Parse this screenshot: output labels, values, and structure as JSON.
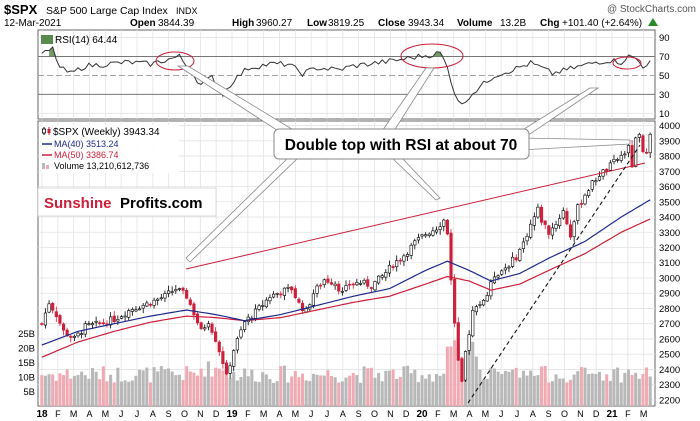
{
  "header": {
    "ticker": "$SPX",
    "name": "S&P 500 Large Cap Index",
    "exchange": "INDX",
    "date": "12-Mar-2021",
    "open_label": "Open",
    "open": "3844.39",
    "high_label": "High",
    "high": "3960.27",
    "low_label": "Low",
    "low": "3819.25",
    "close_label": "Close",
    "close": "3943.34",
    "volume_label": "Volume",
    "volume": "13.2B",
    "chg_label": "Chg",
    "chg": "+101.40 (+2.64%)",
    "watermark": "@ StockCharts.com"
  },
  "colors": {
    "up": "#000000",
    "down": "#cc1f3a",
    "ma40": "#1f2a8c",
    "ma50": "#cc1f3a",
    "rsi": "#333333",
    "rsi_fill": "#5a8a50",
    "vol_up": "#b8b8b8",
    "vol_down": "#f0aab4",
    "trend": "#cc1f3a",
    "callout_border": "#777777",
    "brand_red": "#cc1f3a"
  },
  "legend": {
    "price": "$SPX (Weekly) 3943.34",
    "ma40": "MA(40) 3513.24",
    "ma50": "MA(50) 3386.74",
    "volume": "Volume 13,210,612,736"
  },
  "rsi_panel": {
    "label": "RSI(14) 64.44"
  },
  "annotation": {
    "text": "Double top with RSI at about 70"
  },
  "brand": {
    "part1": "Sunshine",
    "part2": "Profits.com"
  },
  "chart_data": {
    "type": "candlestick",
    "title": "$SPX S&P 500 Large Cap Index",
    "x_labels": [
      "18",
      "F",
      "M",
      "A",
      "M",
      "J",
      "J",
      "A",
      "S",
      "O",
      "N",
      "D",
      "19",
      "F",
      "M",
      "A",
      "M",
      "J",
      "J",
      "A",
      "S",
      "O",
      "N",
      "D",
      "20",
      "F",
      "M",
      "A",
      "M",
      "J",
      "J",
      "A",
      "S",
      "O",
      "N",
      "D",
      "21",
      "F",
      "M"
    ],
    "x_bold": [
      "18",
      "19",
      "20",
      "21"
    ],
    "price_ticks": [
      2200,
      2300,
      2400,
      2500,
      2600,
      2700,
      2800,
      2900,
      3000,
      3100,
      3200,
      3300,
      3400,
      3500,
      3600,
      3700,
      3800,
      3900,
      4000
    ],
    "price_range": [
      2160,
      4030
    ],
    "rsi_ticks": [
      10,
      30,
      50,
      70,
      90
    ],
    "rsi_range": [
      4,
      98
    ],
    "volume_ticks": [
      "5B",
      "10B",
      "15B",
      "20B",
      "25B"
    ],
    "volume_tick_values": [
      5,
      10,
      15,
      20,
      25
    ],
    "volume_range": [
      0,
      28
    ],
    "grid": true,
    "legend_position": "top-left",
    "ohlc_anchors": [
      {
        "w": 0,
        "v": 2700
      },
      {
        "w": 2,
        "v": 2840
      },
      {
        "w": 4,
        "v": 2760
      },
      {
        "w": 6,
        "v": 2650
      },
      {
        "w": 9,
        "v": 2600
      },
      {
        "w": 12,
        "v": 2680
      },
      {
        "w": 16,
        "v": 2700
      },
      {
        "w": 20,
        "v": 2730
      },
      {
        "w": 25,
        "v": 2800
      },
      {
        "w": 29,
        "v": 2830
      },
      {
        "w": 34,
        "v": 2880
      },
      {
        "w": 37,
        "v": 2930
      },
      {
        "w": 40,
        "v": 2880
      },
      {
        "w": 42,
        "v": 2770
      },
      {
        "w": 44,
        "v": 2650
      },
      {
        "w": 46,
        "v": 2720
      },
      {
        "w": 48,
        "v": 2600
      },
      {
        "w": 50,
        "v": 2450
      },
      {
        "w": 51,
        "v": 2350
      },
      {
        "w": 53,
        "v": 2530
      },
      {
        "w": 56,
        "v": 2710
      },
      {
        "w": 60,
        "v": 2800
      },
      {
        "w": 63,
        "v": 2880
      },
      {
        "w": 66,
        "v": 2910
      },
      {
        "w": 69,
        "v": 2930
      },
      {
        "w": 71,
        "v": 2830
      },
      {
        "w": 73,
        "v": 2780
      },
      {
        "w": 75,
        "v": 2900
      },
      {
        "w": 78,
        "v": 2990
      },
      {
        "w": 81,
        "v": 2970
      },
      {
        "w": 83,
        "v": 2900
      },
      {
        "w": 85,
        "v": 2960
      },
      {
        "w": 88,
        "v": 2970
      },
      {
        "w": 91,
        "v": 2950
      },
      {
        "w": 94,
        "v": 3010
      },
      {
        "w": 97,
        "v": 3090
      },
      {
        "w": 100,
        "v": 3150
      },
      {
        "w": 103,
        "v": 3230
      },
      {
        "w": 106,
        "v": 3290
      },
      {
        "w": 109,
        "v": 3330
      },
      {
        "w": 111,
        "v": 3380
      },
      {
        "w": 112,
        "v": 3300
      },
      {
        "w": 113,
        "v": 3000
      },
      {
        "w": 114,
        "v": 2700
      },
      {
        "w": 115,
        "v": 2450
      },
      {
        "w": 116,
        "v": 2300
      },
      {
        "w": 117,
        "v": 2510
      },
      {
        "w": 119,
        "v": 2780
      },
      {
        "w": 121,
        "v": 2830
      },
      {
        "w": 123,
        "v": 2890
      },
      {
        "w": 125,
        "v": 3020
      },
      {
        "w": 127,
        "v": 3050
      },
      {
        "w": 129,
        "v": 3090
      },
      {
        "w": 131,
        "v": 3140
      },
      {
        "w": 133,
        "v": 3230
      },
      {
        "w": 135,
        "v": 3350
      },
      {
        "w": 137,
        "v": 3450
      },
      {
        "w": 138,
        "v": 3380
      },
      {
        "w": 140,
        "v": 3300
      },
      {
        "w": 142,
        "v": 3360
      },
      {
        "w": 144,
        "v": 3440
      },
      {
        "w": 146,
        "v": 3280
      },
      {
        "w": 148,
        "v": 3460
      },
      {
        "w": 150,
        "v": 3550
      },
      {
        "w": 152,
        "v": 3620
      },
      {
        "w": 154,
        "v": 3680
      },
      {
        "w": 156,
        "v": 3710
      },
      {
        "w": 158,
        "v": 3760
      },
      {
        "w": 160,
        "v": 3800
      },
      {
        "w": 162,
        "v": 3850
      },
      {
        "w": 163,
        "v": 3740
      },
      {
        "w": 164,
        "v": 3900
      },
      {
        "w": 165,
        "v": 3930
      },
      {
        "w": 166,
        "v": 3810
      },
      {
        "w": 167,
        "v": 3840
      },
      {
        "w": 168,
        "v": 3943
      }
    ],
    "ma40_anchors": [
      {
        "w": 0,
        "v": 2560
      },
      {
        "w": 10,
        "v": 2650
      },
      {
        "w": 20,
        "v": 2700
      },
      {
        "w": 30,
        "v": 2750
      },
      {
        "w": 40,
        "v": 2790
      },
      {
        "w": 48,
        "v": 2760
      },
      {
        "w": 56,
        "v": 2720
      },
      {
        "w": 66,
        "v": 2760
      },
      {
        "w": 76,
        "v": 2820
      },
      {
        "w": 86,
        "v": 2880
      },
      {
        "w": 96,
        "v": 2930
      },
      {
        "w": 106,
        "v": 3050
      },
      {
        "w": 112,
        "v": 3110
      },
      {
        "w": 118,
        "v": 3050
      },
      {
        "w": 124,
        "v": 2980
      },
      {
        "w": 132,
        "v": 3030
      },
      {
        "w": 140,
        "v": 3130
      },
      {
        "w": 150,
        "v": 3240
      },
      {
        "w": 160,
        "v": 3400
      },
      {
        "w": 168,
        "v": 3513
      }
    ],
    "ma50_anchors": [
      {
        "w": 0,
        "v": 2480
      },
      {
        "w": 10,
        "v": 2580
      },
      {
        "w": 20,
        "v": 2650
      },
      {
        "w": 30,
        "v": 2710
      },
      {
        "w": 40,
        "v": 2750
      },
      {
        "w": 48,
        "v": 2740
      },
      {
        "w": 56,
        "v": 2720
      },
      {
        "w": 66,
        "v": 2740
      },
      {
        "w": 76,
        "v": 2790
      },
      {
        "w": 86,
        "v": 2840
      },
      {
        "w": 96,
        "v": 2880
      },
      {
        "w": 106,
        "v": 2960
      },
      {
        "w": 112,
        "v": 3010
      },
      {
        "w": 118,
        "v": 2980
      },
      {
        "w": 124,
        "v": 2920
      },
      {
        "w": 132,
        "v": 2960
      },
      {
        "w": 140,
        "v": 3050
      },
      {
        "w": 150,
        "v": 3160
      },
      {
        "w": 160,
        "v": 3300
      },
      {
        "w": 168,
        "v": 3387
      }
    ],
    "rsi_anchors": [
      {
        "w": 0,
        "v": 72
      },
      {
        "w": 3,
        "v": 78
      },
      {
        "w": 5,
        "v": 58
      },
      {
        "w": 8,
        "v": 52
      },
      {
        "w": 12,
        "v": 60
      },
      {
        "w": 18,
        "v": 62
      },
      {
        "w": 24,
        "v": 64
      },
      {
        "w": 30,
        "v": 62
      },
      {
        "w": 36,
        "v": 68
      },
      {
        "w": 38,
        "v": 70
      },
      {
        "w": 41,
        "v": 55
      },
      {
        "w": 44,
        "v": 40
      },
      {
        "w": 47,
        "v": 48
      },
      {
        "w": 50,
        "v": 30
      },
      {
        "w": 53,
        "v": 45
      },
      {
        "w": 57,
        "v": 58
      },
      {
        "w": 63,
        "v": 62
      },
      {
        "w": 68,
        "v": 62
      },
      {
        "w": 72,
        "v": 52
      },
      {
        "w": 76,
        "v": 58
      },
      {
        "w": 82,
        "v": 56
      },
      {
        "w": 86,
        "v": 60
      },
      {
        "w": 92,
        "v": 63
      },
      {
        "w": 98,
        "v": 66
      },
      {
        "w": 104,
        "v": 70
      },
      {
        "w": 108,
        "v": 72
      },
      {
        "w": 110,
        "v": 74
      },
      {
        "w": 112,
        "v": 58
      },
      {
        "w": 114,
        "v": 32
      },
      {
        "w": 116,
        "v": 18
      },
      {
        "w": 118,
        "v": 28
      },
      {
        "w": 121,
        "v": 38
      },
      {
        "w": 125,
        "v": 50
      },
      {
        "w": 130,
        "v": 56
      },
      {
        "w": 135,
        "v": 63
      },
      {
        "w": 138,
        "v": 58
      },
      {
        "w": 141,
        "v": 52
      },
      {
        "w": 145,
        "v": 56
      },
      {
        "w": 149,
        "v": 60
      },
      {
        "w": 153,
        "v": 64
      },
      {
        "w": 157,
        "v": 66
      },
      {
        "w": 160,
        "v": 64
      },
      {
        "w": 162,
        "v": 70
      },
      {
        "w": 164,
        "v": 68
      },
      {
        "w": 166,
        "v": 60
      },
      {
        "w": 168,
        "v": 64
      }
    ]
  }
}
